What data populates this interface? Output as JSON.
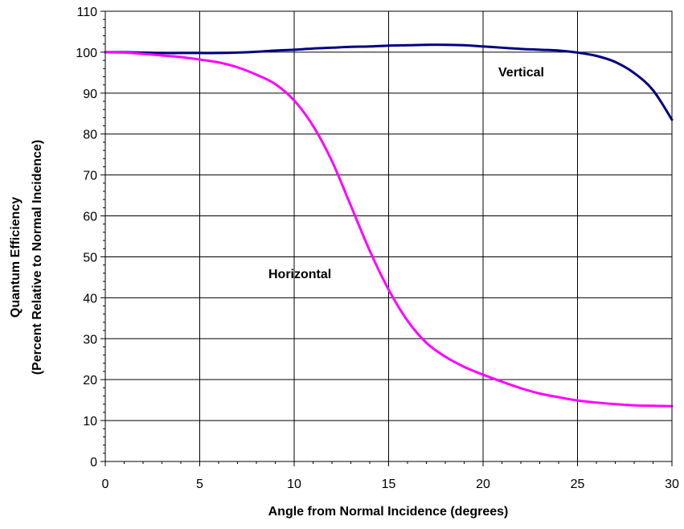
{
  "chart_data": {
    "type": "line",
    "xlabel": "Angle from Normal Incidence (degrees)",
    "ylabel_line1": "Quantum Efficiency",
    "ylabel_line2": "(Percent Relative to Normal Incidence)",
    "xlim": [
      0,
      30
    ],
    "ylim": [
      0,
      110
    ],
    "x_ticks": [
      0,
      5,
      10,
      15,
      20,
      25,
      30
    ],
    "y_ticks": [
      0,
      10,
      20,
      30,
      40,
      50,
      60,
      70,
      80,
      90,
      100,
      110
    ],
    "grid": true,
    "series": [
      {
        "name": "Vertical",
        "color": "#000080",
        "x": [
          0,
          1,
          2,
          3,
          4,
          5,
          6,
          7,
          8,
          9,
          10,
          11,
          12,
          13,
          14,
          15,
          16,
          17,
          18,
          19,
          20,
          21,
          22,
          23,
          24,
          25,
          26,
          27,
          28,
          29,
          30
        ],
        "y": [
          100,
          100,
          99.9,
          99.8,
          99.8,
          99.8,
          99.8,
          99.9,
          100.1,
          100.4,
          100.6,
          100.9,
          101.1,
          101.3,
          101.4,
          101.6,
          101.7,
          101.8,
          101.8,
          101.7,
          101.4,
          101.1,
          100.8,
          100.6,
          100.4,
          99.9,
          99.1,
          97.6,
          94.9,
          90.7,
          83.5
        ]
      },
      {
        "name": "Horizontal",
        "color": "#FF00FF",
        "x": [
          0,
          1,
          2,
          3,
          4,
          5,
          6,
          7,
          8,
          9,
          10,
          11,
          12,
          13,
          14,
          15,
          16,
          17,
          18,
          19,
          20,
          21,
          22,
          23,
          24,
          25,
          26,
          27,
          28,
          29,
          30
        ],
        "y": [
          100,
          99.9,
          99.6,
          99.2,
          98.8,
          98.2,
          97.5,
          96.3,
          94.5,
          92.2,
          88.2,
          82,
          73.4,
          62.5,
          51.5,
          42,
          34.4,
          29,
          25.6,
          23.1,
          21.2,
          19.5,
          17.9,
          16.6,
          15.7,
          14.9,
          14.4,
          14,
          13.7,
          13.6,
          13.5
        ]
      }
    ]
  }
}
